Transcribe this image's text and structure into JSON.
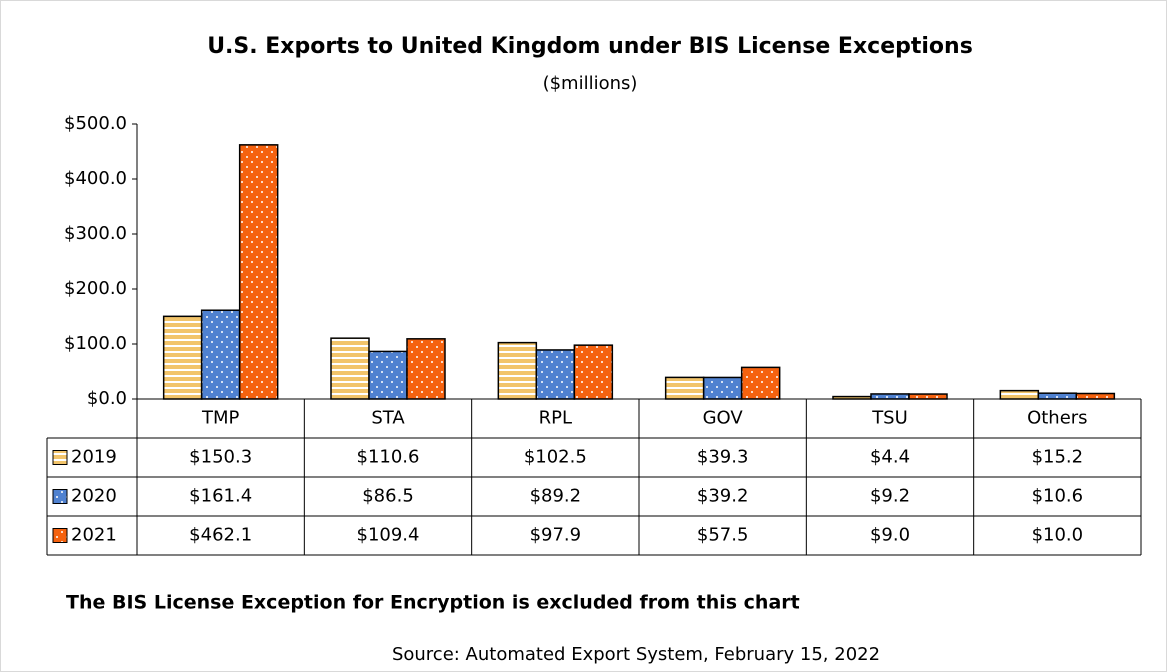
{
  "chart_data": {
    "type": "bar",
    "title": "U.S. Exports to United Kingdom under BIS License Exceptions",
    "subtitle": "($millions)",
    "categories": [
      "TMP",
      "STA",
      "RPL",
      "GOV",
      "TSU",
      "Others"
    ],
    "series": [
      {
        "name": "2019",
        "color": "#f2c46a",
        "pattern": "stripes",
        "values": [
          150.3,
          110.6,
          102.5,
          39.3,
          4.4,
          15.2
        ],
        "value_labels": [
          "$150.3",
          "$110.6",
          "$102.5",
          "$39.3",
          "$4.4",
          "$15.2"
        ]
      },
      {
        "name": "2020",
        "color": "#4f81d0",
        "pattern": "dots",
        "values": [
          161.4,
          86.5,
          89.2,
          39.2,
          9.2,
          10.6
        ],
        "value_labels": [
          "$161.4",
          "$86.5",
          "$89.2",
          "$39.2",
          "$9.2",
          "$10.6"
        ]
      },
      {
        "name": "2021",
        "color": "#f5620f",
        "pattern": "dots",
        "values": [
          462.1,
          109.4,
          97.9,
          57.5,
          9.0,
          10.0
        ],
        "value_labels": [
          "$462.1",
          "$109.4",
          "$97.9",
          "$57.5",
          "$9.0",
          "$10.0"
        ]
      }
    ],
    "ylim": [
      0,
      500
    ],
    "yticks": [
      {
        "value": 0,
        "label": "$0.0"
      },
      {
        "value": 100,
        "label": "$100.0"
      },
      {
        "value": 200,
        "label": "$200.0"
      },
      {
        "value": 300,
        "label": "$300.0"
      },
      {
        "value": 400,
        "label": "$400.0"
      },
      {
        "value": 500,
        "label": "$500.0"
      }
    ],
    "grid": false,
    "note": "The BIS License Exception for Encryption is excluded from this chart",
    "source": "Source: Automated Export System, February 15, 2022"
  }
}
